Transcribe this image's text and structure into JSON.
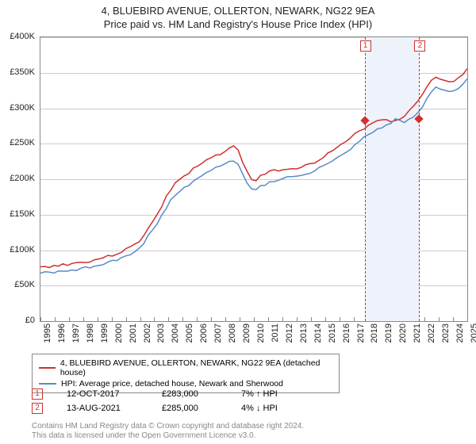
{
  "title": {
    "main": "4, BLUEBIRD AVENUE, OLLERTON, NEWARK, NG22 9EA",
    "sub": "Price paid vs. HM Land Registry's House Price Index (HPI)"
  },
  "chart": {
    "type": "line",
    "ylim": [
      0,
      400000
    ],
    "ytick_step": 50000,
    "y_ticks": [
      "£0",
      "£50K",
      "£100K",
      "£150K",
      "£200K",
      "£250K",
      "£300K",
      "£350K",
      "£400K"
    ],
    "x_ticks": [
      "1995",
      "1996",
      "1997",
      "1998",
      "1999",
      "2000",
      "2001",
      "2002",
      "2003",
      "2004",
      "2005",
      "2006",
      "2007",
      "2008",
      "2009",
      "2010",
      "2011",
      "2012",
      "2013",
      "2014",
      "2015",
      "2016",
      "2017",
      "2018",
      "2019",
      "2020",
      "2021",
      "2022",
      "2023",
      "2024",
      "2025"
    ],
    "grid_color": "#cccccc",
    "border_color": "#888888",
    "background_color": "#ffffff",
    "shade_color": "#eef2fa",
    "series": [
      {
        "name": "price_paid",
        "color": "#d03030",
        "width": 1.5,
        "label": "4, BLUEBIRD AVENUE, OLLERTON, NEWARK, NG22 9EA (detached house)",
        "data": [
          76,
          76,
          77,
          78,
          78,
          80,
          80,
          81,
          82,
          83,
          84,
          84,
          86,
          88,
          90,
          91,
          93,
          95,
          98,
          101,
          104,
          108,
          113,
          121,
          132,
          140,
          150,
          162,
          175,
          185,
          195,
          200,
          204,
          208,
          214,
          218,
          222,
          226,
          230,
          233,
          236,
          240,
          244,
          246,
          240,
          225,
          210,
          200,
          198,
          205,
          208,
          210,
          212,
          213,
          214,
          215,
          215,
          216,
          218,
          219,
          221,
          224,
          228,
          232,
          236,
          240,
          245,
          248,
          252,
          258,
          263,
          268,
          272,
          276,
          280,
          283,
          285,
          283,
          282,
          283,
          285,
          290,
          295,
          302,
          310,
          320,
          330,
          340,
          345,
          342,
          338,
          336,
          338,
          342,
          348,
          355
        ]
      },
      {
        "name": "hpi",
        "color": "#5b8ac6",
        "width": 1.5,
        "label": "HPI: Average price, detached house, Newark and Sherwood",
        "data": [
          68,
          68,
          69,
          69,
          70,
          71,
          71,
          72,
          73,
          74,
          75,
          76,
          77,
          78,
          80,
          82,
          84,
          86,
          88,
          91,
          94,
          98,
          103,
          110,
          120,
          128,
          137,
          148,
          160,
          170,
          178,
          184,
          188,
          192,
          197,
          201,
          205,
          209,
          213,
          216,
          219,
          222,
          225,
          227,
          222,
          208,
          195,
          186,
          184,
          190,
          193,
          196,
          198,
          200,
          202,
          203,
          204,
          205,
          206,
          207,
          209,
          212,
          215,
          218,
          222,
          226,
          230,
          234,
          238,
          243,
          248,
          253,
          258,
          262,
          266,
          270,
          273,
          276,
          280,
          284,
          282,
          280,
          283,
          288,
          294,
          302,
          312,
          322,
          330,
          328,
          324,
          322,
          324,
          328,
          334,
          340
        ]
      }
    ],
    "markers": [
      {
        "id": "1",
        "year_frac": 22.78,
        "value": 283000
      },
      {
        "id": "2",
        "year_frac": 26.62,
        "value": 285000
      }
    ]
  },
  "sales": [
    {
      "id": "1",
      "date": "12-OCT-2017",
      "price": "£283,000",
      "pct": "7% ↑ HPI"
    },
    {
      "id": "2",
      "date": "13-AUG-2021",
      "price": "£285,000",
      "pct": "4% ↓ HPI"
    }
  ],
  "footer": {
    "line1": "Contains HM Land Registry data © Crown copyright and database right 2024.",
    "line2": "This data is licensed under the Open Government Licence v3.0."
  }
}
